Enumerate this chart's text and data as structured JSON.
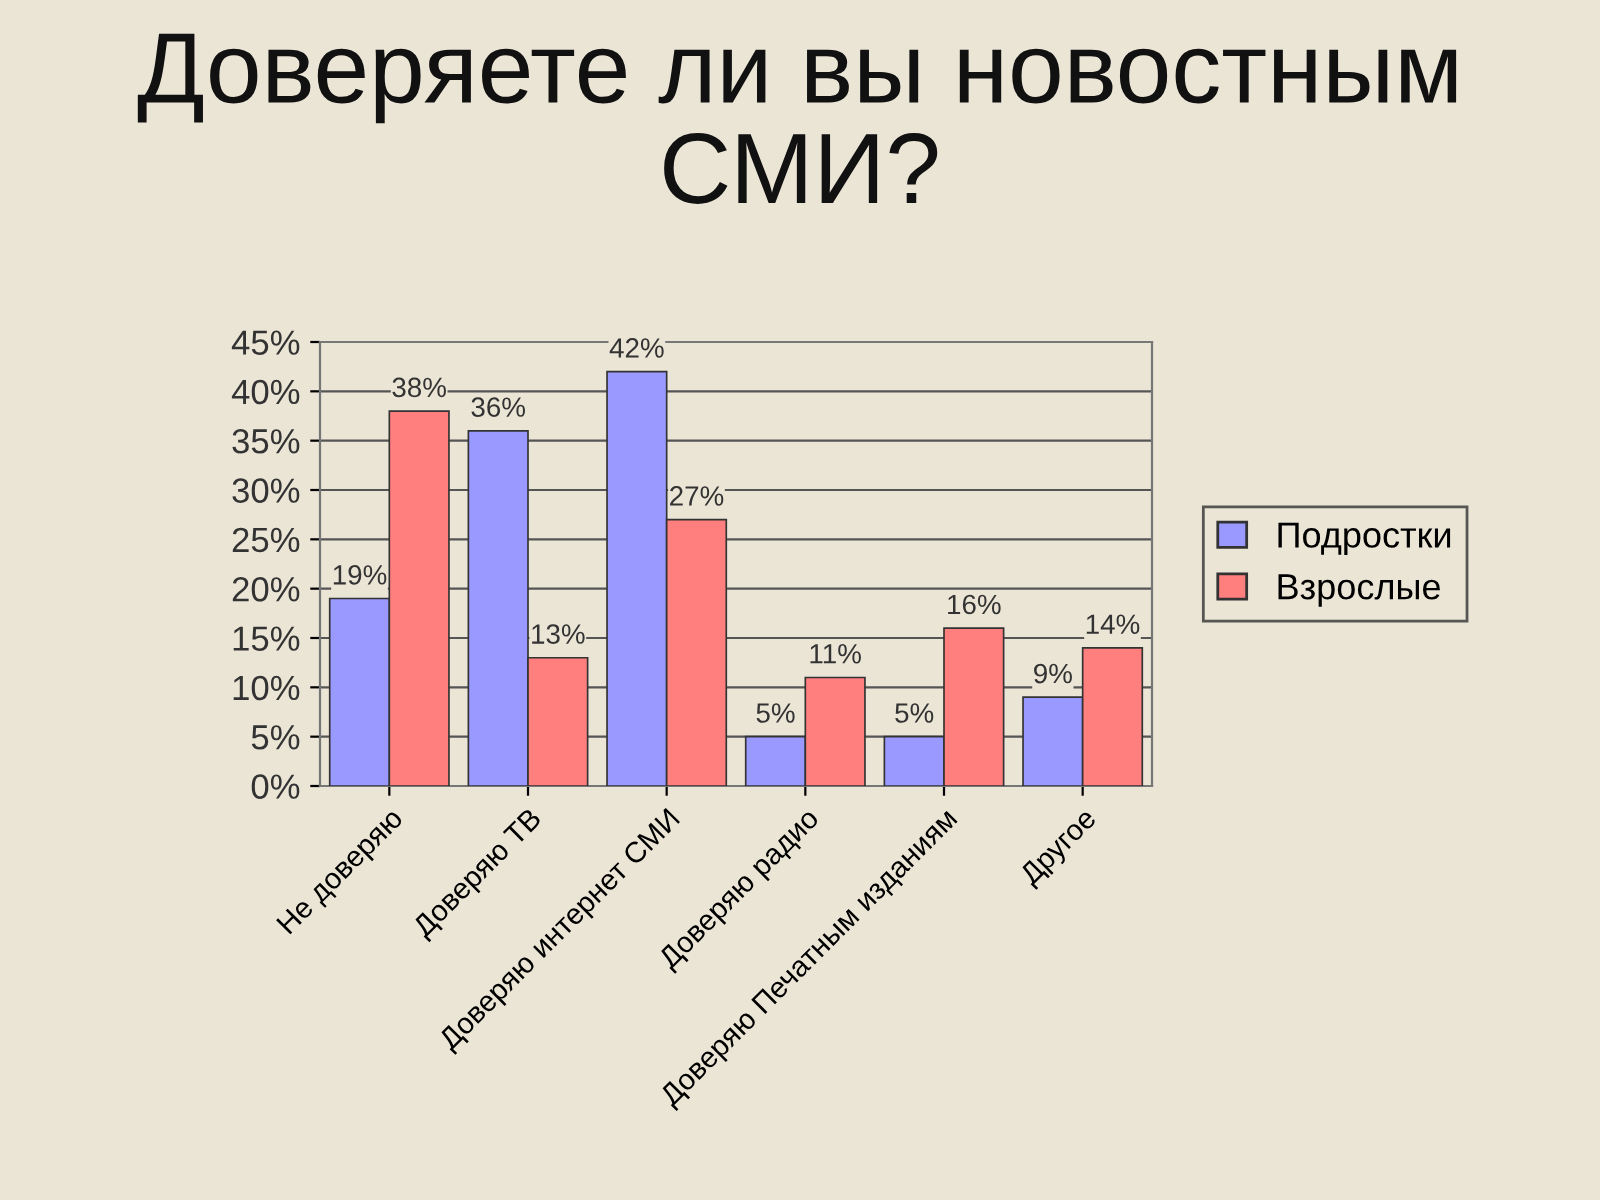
{
  "chart_data": {
    "type": "bar",
    "title": "Доверяете ли вы новостным СМИ?",
    "categories": [
      "Не доверяю",
      "Доверяю ТВ",
      "Доверяю интернет СМИ",
      "Доверяю радио",
      "Доверяю Печатным изданиям",
      "Другое"
    ],
    "series": [
      {
        "name": "Подростки",
        "color": "#9999ff",
        "values": [
          19,
          36,
          42,
          5,
          5,
          9
        ],
        "value_labels": [
          "19%",
          "36%",
          "42%",
          "5%",
          "5%",
          "9%"
        ]
      },
      {
        "name": "Взрослые",
        "color": "#ff7f7f",
        "values": [
          38,
          13,
          27,
          11,
          16,
          14
        ],
        "value_labels": [
          "38%",
          "13%",
          "27%",
          "11%",
          "16%",
          "14%"
        ]
      }
    ],
    "ylim": [
      0,
      45
    ],
    "yticks": [
      {
        "value": 0,
        "label": "0%"
      },
      {
        "value": 5,
        "label": "5%"
      },
      {
        "value": 10,
        "label": "10%"
      },
      {
        "value": 15,
        "label": "15%"
      },
      {
        "value": 20,
        "label": "20%"
      },
      {
        "value": 25,
        "label": "25%"
      },
      {
        "value": 30,
        "label": "30%"
      },
      {
        "value": 35,
        "label": "35%"
      },
      {
        "value": 40,
        "label": "40%"
      },
      {
        "value": 45,
        "label": "45%"
      }
    ],
    "grid": "y",
    "legend": "right"
  }
}
